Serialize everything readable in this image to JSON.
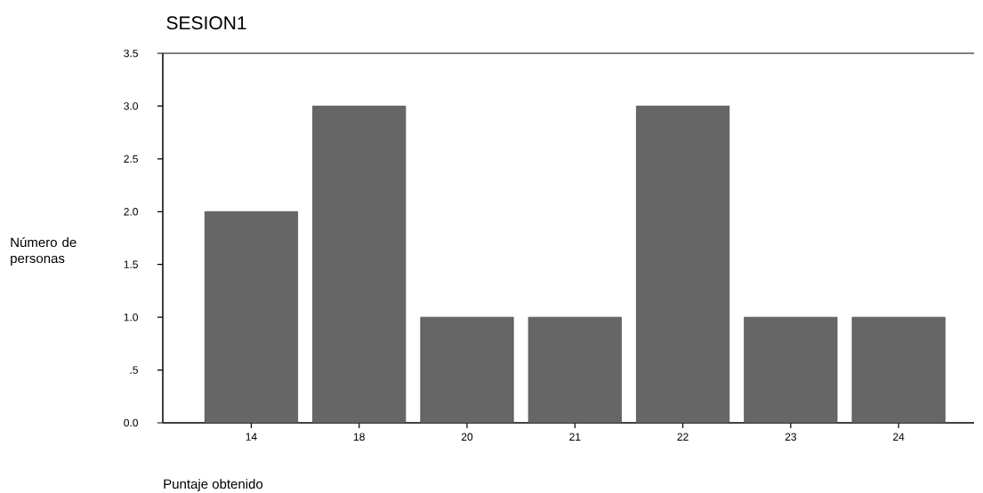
{
  "chart_data": {
    "type": "bar",
    "title": "SESION1",
    "xlabel": "Puntaje obtenido",
    "ylabel": "Número de personas",
    "categories": [
      "14",
      "18",
      "20",
      "21",
      "22",
      "23",
      "24"
    ],
    "values": [
      2,
      3,
      1,
      1,
      3,
      1,
      1
    ],
    "color": "#666666",
    "ylim": [
      0,
      3.5
    ],
    "yticks": [
      {
        "value": 0,
        "label": "0.0"
      },
      {
        "value": 0.5,
        "label": ".5"
      },
      {
        "value": 1,
        "label": "1.0"
      },
      1.5,
      {
        "value": 2,
        "label": "2.0"
      },
      2.5,
      {
        "value": 3,
        "label": "3.0"
      },
      3.5
    ]
  }
}
